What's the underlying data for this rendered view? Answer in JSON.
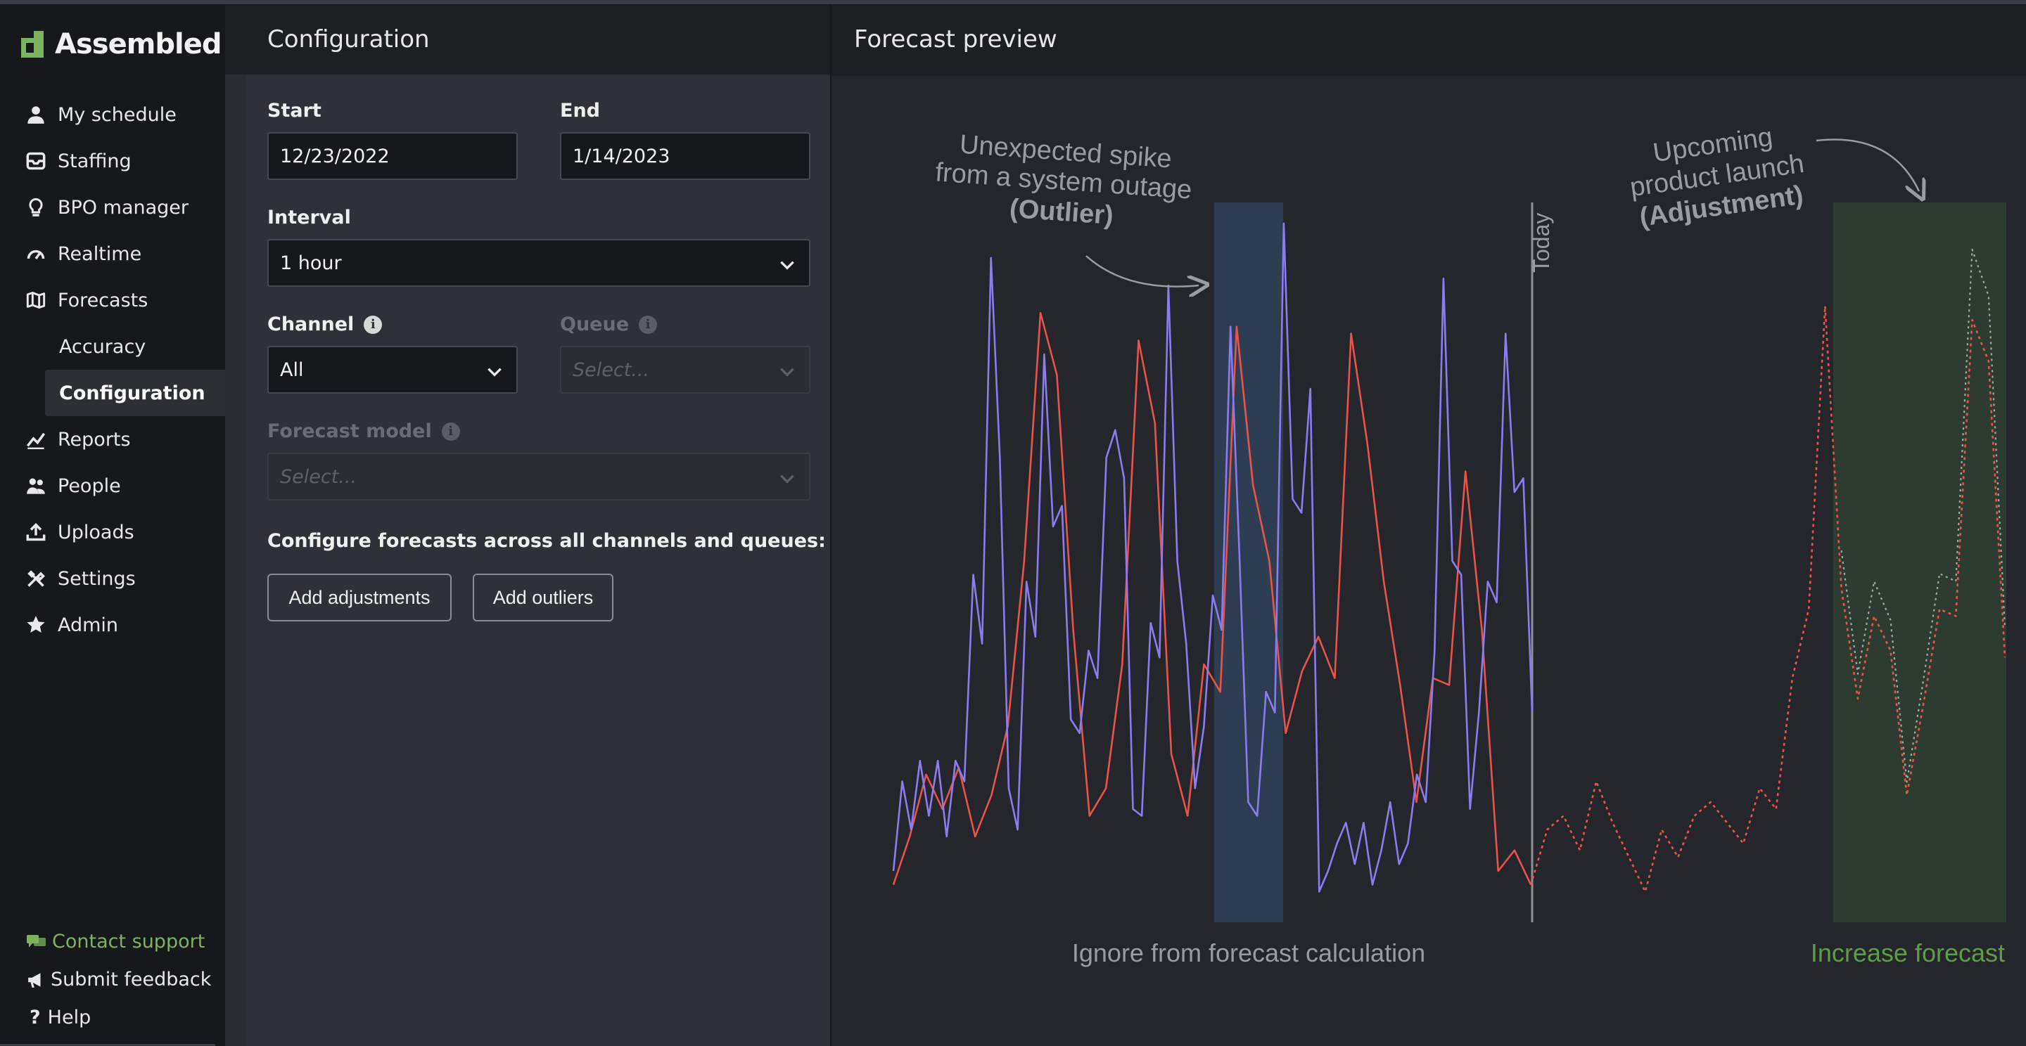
{
  "sidebar": {
    "logo": "Assembled",
    "items": [
      {
        "label": "My schedule",
        "icon": "person-icon"
      },
      {
        "label": "Staffing",
        "icon": "inbox-icon"
      },
      {
        "label": "BPO manager",
        "icon": "lightbulb-icon"
      },
      {
        "label": "Realtime",
        "icon": "gauge-icon"
      },
      {
        "label": "Forecasts",
        "icon": "map-icon"
      },
      {
        "label": "Accuracy"
      },
      {
        "label": "Configuration"
      },
      {
        "label": "Reports",
        "icon": "trend-icon"
      },
      {
        "label": "People",
        "icon": "people-icon"
      },
      {
        "label": "Uploads",
        "icon": "upload-icon"
      },
      {
        "label": "Settings",
        "icon": "tools-icon"
      },
      {
        "label": "Admin",
        "icon": "star-icon"
      }
    ],
    "support": "Contact support",
    "feedback": "Submit feedback",
    "help": "Help"
  },
  "config": {
    "title": "Configuration",
    "start_label": "Start",
    "start_value": "12/23/2022",
    "end_label": "End",
    "end_value": "1/14/2023",
    "interval_label": "Interval",
    "interval_value": "1 hour",
    "channel_label": "Channel",
    "channel_value": "All",
    "queue_label": "Queue",
    "queue_placeholder": "Select...",
    "model_label": "Forecast model",
    "model_placeholder": "Select...",
    "configure_text": "Configure forecasts across all channels and queues:",
    "add_adjustments": "Add adjustments",
    "add_outliers": "Add outliers"
  },
  "preview": {
    "title": "Forecast preview",
    "annotation_outlier_1": "Unexpected spike",
    "annotation_outlier_2": "from a system outage",
    "annotation_outlier_3": "(Outlier)",
    "annotation_adjust_1": "Upcoming",
    "annotation_adjust_2": "product launch",
    "annotation_adjust_3": "(Adjustment)",
    "today_label": "Today",
    "outlier_caption": "Ignore from forecast calculation",
    "adjust_caption": "Increase forecast"
  },
  "colors": {
    "accent_green": "#7bb35f",
    "actual_line": "#8b7cf0",
    "forecast_line": "#e8534a",
    "outlier_band": "#2e3d52",
    "adjust_band": "#2e3b30"
  },
  "chart_data": {
    "type": "line",
    "series": [
      {
        "values": [
          5,
          18,
          11,
          21,
          13,
          21,
          10,
          21,
          18,
          48,
          38,
          94,
          65,
          17,
          11,
          47,
          39,
          80,
          55,
          58,
          27,
          25,
          37,
          33,
          65,
          69,
          62,
          14,
          13,
          41,
          36,
          90,
          50,
          38,
          17,
          26,
          45,
          40,
          84,
          51,
          15,
          13,
          31,
          28,
          99,
          59,
          57,
          75,
          2,
          5,
          9,
          12,
          6,
          12,
          3,
          8,
          15,
          6,
          9,
          19,
          15,
          37,
          91,
          50,
          48,
          14,
          28,
          47,
          44,
          83,
          60,
          62,
          28
        ]
      },
      {
        "values": [
          3,
          10,
          19,
          14,
          20,
          10,
          16,
          26,
          50,
          86,
          77,
          40,
          13,
          17,
          35,
          82,
          70,
          22,
          13,
          35,
          31,
          84,
          61,
          50,
          25,
          34,
          39,
          33,
          83,
          67,
          47,
          32,
          15,
          33,
          32,
          63,
          40,
          5,
          8,
          3,
          11,
          13,
          8,
          18,
          12,
          7,
          2,
          11,
          7,
          13,
          15,
          12,
          9,
          17,
          14,
          33,
          43,
          87,
          46,
          30,
          42,
          37,
          16,
          29,
          43,
          42,
          85,
          79,
          36
        ]
      }
    ]
  }
}
